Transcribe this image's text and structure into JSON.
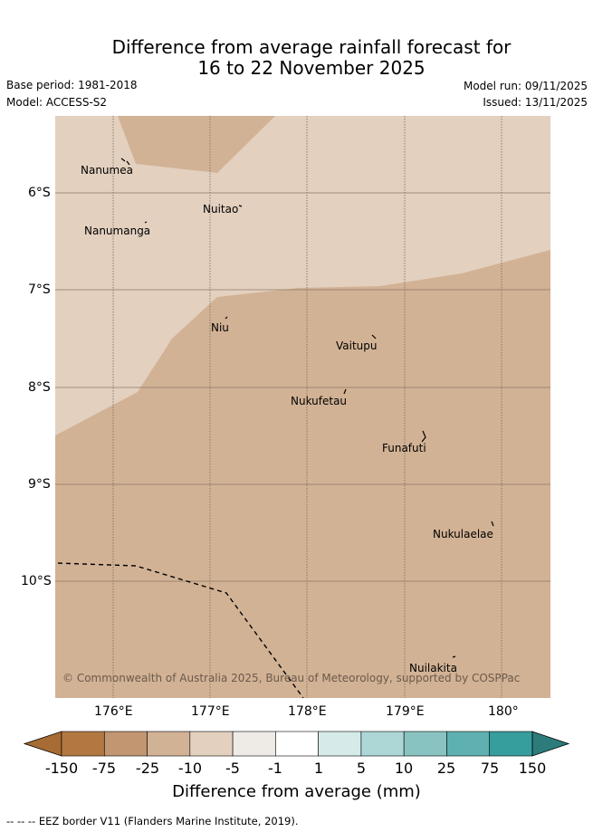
{
  "header": {
    "title_line1": "Difference from average rainfall forecast for",
    "title_line2": "16 to 22 November 2025",
    "base_period": "Base period: 1981-2018",
    "model": "Model: ACCESS-S2",
    "model_run": "Model run: 09/11/2025",
    "issued": "Issued: 13/11/2025"
  },
  "map": {
    "lon_ticks": [
      "176°E",
      "177°E",
      "178°E",
      "179°E",
      "180°"
    ],
    "lat_ticks": [
      "6°S",
      "7°S",
      "8°S",
      "9°S",
      "10°S"
    ],
    "places": [
      "Nanumea",
      "Nuitao",
      "Nanumanga",
      "Niu",
      "Vaitupu",
      "Nukufetau",
      "Funafuti",
      "Nukulaelae",
      "Nuilakita"
    ],
    "copyright": "© Commonwealth of Australia 2025, Bureau of Meteorology, supported by COSPPac",
    "colors": {
      "category_-5_to_-10": "#e3d0bf",
      "category_-10_to_-25": "#d2b295",
      "grid": "#7a6a5a",
      "eez": "#000000"
    }
  },
  "colorbar": {
    "labels": [
      "-150",
      "-75",
      "-25",
      "-10",
      "-5",
      "-1",
      "1",
      "5",
      "10",
      "25",
      "75",
      "150"
    ],
    "colors": [
      "#a66c33",
      "#b37842",
      "#c19670",
      "#d2b295",
      "#e3d0bf",
      "#eeeae6",
      "#ffffff",
      "#d5eae9",
      "#acd7d6",
      "#88c3c2",
      "#5eb1b0",
      "#369e9d",
      "#2d7b7b"
    ],
    "title": "Difference from average (mm)"
  },
  "footer": {
    "legend_text": "-- -- -- EEZ border V11 (Flanders Marine Institute, 2019)."
  }
}
